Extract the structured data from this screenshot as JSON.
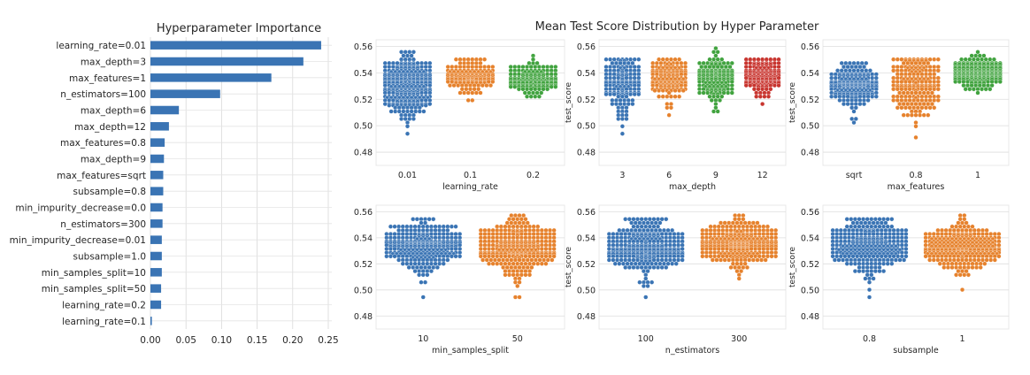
{
  "chart_data": [
    {
      "id": "importance",
      "type": "bar",
      "orientation": "horizontal",
      "title": "Hyperparameter Importance",
      "xlabel": "",
      "ylabel": "",
      "categories": [
        "learning_rate=0.01",
        "max_depth=3",
        "max_features=1",
        "n_estimators=100",
        "max_depth=6",
        "max_depth=12",
        "max_features=0.8",
        "max_depth=9",
        "max_features=sqrt",
        "subsample=0.8",
        "min_impurity_decrease=0.0",
        "n_estimators=300",
        "min_impurity_decrease=0.01",
        "subsample=1.0",
        "min_samples_split=10",
        "min_samples_split=50",
        "learning_rate=0.2",
        "learning_rate=0.1"
      ],
      "values": [
        0.24,
        0.215,
        0.17,
        0.098,
        0.04,
        0.026,
        0.02,
        0.019,
        0.018,
        0.018,
        0.017,
        0.017,
        0.016,
        0.016,
        0.016,
        0.015,
        0.015,
        0.002
      ],
      "xlim": [
        0,
        0.255
      ],
      "xticks": [
        "0.00",
        "0.05",
        "0.10",
        "0.15",
        "0.20",
        "0.25"
      ],
      "color": "#3a74b4"
    },
    {
      "id": "swarm",
      "type": "scatter",
      "subtype": "swarm",
      "title": "Mean Test Score Distribution by Hyper Parameter",
      "ylabel": "test_score",
      "ylim": [
        0.47,
        0.565
      ],
      "yticks": [
        "0.48",
        "0.50",
        "0.52",
        "0.54",
        "0.56"
      ],
      "palette": [
        "#3a74b4",
        "#e6822d",
        "#41a33f",
        "#c8352f"
      ],
      "panels": [
        {
          "xlabel": "learning_rate",
          "show_ylabel": false,
          "categories": [
            {
              "label": "0.01",
              "n": 300,
              "mean": 0.53,
              "sd": 0.012,
              "min": 0.494,
              "max": 0.557
            },
            {
              "label": "0.1",
              "n": 150,
              "mean": 0.538,
              "sd": 0.006,
              "min": 0.519,
              "max": 0.551
            },
            {
              "label": "0.2",
              "n": 150,
              "mean": 0.536,
              "sd": 0.0055,
              "min": 0.522,
              "max": 0.552
            }
          ]
        },
        {
          "xlabel": "max_depth",
          "show_ylabel": true,
          "categories": [
            {
              "label": "3",
              "n": 150,
              "mean": 0.532,
              "sd": 0.013,
              "min": 0.493,
              "max": 0.55
            },
            {
              "label": "6",
              "n": 150,
              "mean": 0.535,
              "sd": 0.008,
              "min": 0.509,
              "max": 0.551
            },
            {
              "label": "9",
              "n": 150,
              "mean": 0.537,
              "sd": 0.008,
              "min": 0.51,
              "max": 0.558
            },
            {
              "label": "12",
              "n": 150,
              "mean": 0.537,
              "sd": 0.007,
              "min": 0.517,
              "max": 0.55
            }
          ]
        },
        {
          "xlabel": "max_features",
          "show_ylabel": true,
          "categories": [
            {
              "label": "sqrt",
              "n": 200,
              "mean": 0.531,
              "sd": 0.009,
              "min": 0.503,
              "max": 0.546
            },
            {
              "label": "0.8",
              "n": 200,
              "mean": 0.531,
              "sd": 0.012,
              "min": 0.492,
              "max": 0.55
            },
            {
              "label": "1",
              "n": 200,
              "mean": 0.54,
              "sd": 0.006,
              "min": 0.524,
              "max": 0.556
            }
          ]
        },
        {
          "xlabel": "min_samples_split",
          "show_ylabel": false,
          "categories": [
            {
              "label": "10",
              "n": 300,
              "mean": 0.534,
              "sd": 0.009,
              "min": 0.494,
              "max": 0.555
            },
            {
              "label": "50",
              "n": 300,
              "mean": 0.533,
              "sd": 0.01,
              "min": 0.495,
              "max": 0.557
            }
          ]
        },
        {
          "xlabel": "n_estimators",
          "show_ylabel": true,
          "categories": [
            {
              "label": "100",
              "n": 300,
              "mean": 0.532,
              "sd": 0.011,
              "min": 0.494,
              "max": 0.553
            },
            {
              "label": "300",
              "n": 300,
              "mean": 0.536,
              "sd": 0.008,
              "min": 0.509,
              "max": 0.557
            }
          ]
        },
        {
          "xlabel": "subsample",
          "show_ylabel": true,
          "categories": [
            {
              "label": "0.8",
              "n": 300,
              "mean": 0.533,
              "sd": 0.01,
              "min": 0.494,
              "max": 0.555
            },
            {
              "label": "1",
              "n": 300,
              "mean": 0.534,
              "sd": 0.009,
              "min": 0.5,
              "max": 0.556
            }
          ]
        }
      ]
    }
  ]
}
